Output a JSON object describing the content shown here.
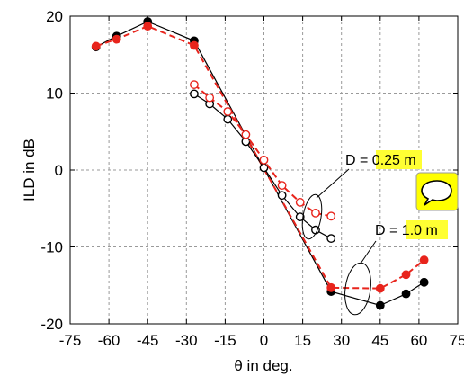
{
  "chart_data": {
    "type": "line",
    "xlabel": "θ in deg.",
    "ylabel": "ILD in dB",
    "xlim": [
      -75,
      75
    ],
    "ylim": [
      -20,
      20
    ],
    "x_ticks": [
      -75,
      -60,
      -45,
      -30,
      -15,
      0,
      15,
      30,
      45,
      60,
      75
    ],
    "y_ticks": [
      -20,
      -10,
      0,
      10,
      20
    ],
    "x_tick_labels": [
      "-75",
      "-60",
      "-45",
      "-30",
      "-15",
      "0",
      "15",
      "30",
      "45",
      "60",
      "75"
    ],
    "y_tick_labels": [
      "-20",
      "-10",
      "0",
      "10",
      "20"
    ],
    "grid": true,
    "series": [
      {
        "group": "D = 1.0 m",
        "style": "solid",
        "marker": "filled-circle",
        "color": "#000000",
        "x": [
          -65,
          -57,
          -45,
          -27,
          26,
          45,
          55,
          62
        ],
        "y": [
          16.0,
          17.4,
          19.3,
          16.8,
          -15.8,
          -17.6,
          -16.1,
          -14.6
        ]
      },
      {
        "group": "D = 1.0 m",
        "style": "dashed",
        "marker": "filled-circle",
        "color": "#e8241c",
        "x": [
          -65,
          -57,
          -45,
          -27,
          26,
          45,
          55,
          62
        ],
        "y": [
          16.1,
          17.0,
          18.7,
          16.2,
          -15.3,
          -15.4,
          -13.6,
          -11.7
        ]
      },
      {
        "group": "D = 0.25 m",
        "style": "solid",
        "marker": "open-circle",
        "color": "#000000",
        "x": [
          -27,
          -21,
          -14,
          -7,
          0,
          7,
          14,
          20,
          26
        ],
        "y": [
          9.9,
          8.6,
          6.6,
          3.7,
          0.3,
          -3.3,
          -6.1,
          -7.8,
          -8.9
        ]
      },
      {
        "group": "D = 0.25 m",
        "style": "dashed",
        "marker": "open-circle",
        "color": "#e8241c",
        "x": [
          -27,
          -21,
          -14,
          -7,
          0,
          7,
          14,
          20,
          26
        ],
        "y": [
          11.1,
          9.4,
          7.6,
          4.6,
          1.3,
          -2.0,
          -4.2,
          -5.6,
          -6.0
        ]
      }
    ],
    "annotations": [
      {
        "prefix": "D = ",
        "value": "0.25 m",
        "highlight": "#ffff33"
      },
      {
        "prefix": "D = ",
        "value": "1.0 m",
        "highlight": "#ffff33"
      }
    ],
    "comment_icon_color": "#ffff00"
  }
}
